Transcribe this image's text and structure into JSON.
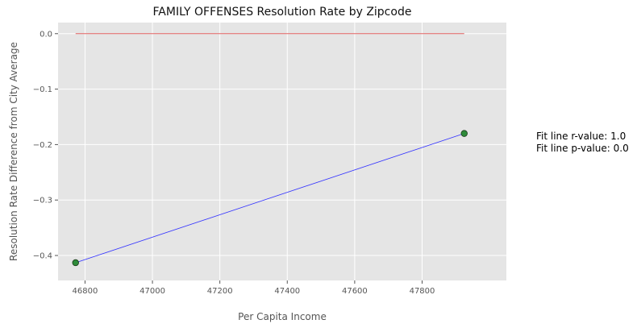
{
  "chart_data": {
    "type": "scatter",
    "title": "FAMILY OFFENSES Resolution Rate by Zipcode",
    "xlabel": "Per Capita Income",
    "ylabel": "Resolution Rate Difference from City Average",
    "xlim": [
      46720,
      48050
    ],
    "ylim": [
      -0.445,
      0.02
    ],
    "x_ticks": [
      46800,
      47000,
      47200,
      47400,
      47600,
      47800
    ],
    "x_tick_labels": [
      "46800",
      "47000",
      "47200",
      "47400",
      "47600",
      "47800"
    ],
    "y_ticks": [
      0.0,
      -0.1,
      -0.2,
      -0.3,
      -0.4
    ],
    "y_tick_labels": [
      "0.0",
      "−0.1",
      "−0.2",
      "−0.3",
      "−0.4"
    ],
    "grid": true,
    "background_color": "#e5e5e5",
    "points": {
      "x": [
        46772,
        47925
      ],
      "y": [
        -0.413,
        -0.18
      ],
      "color": "#2e8b3a"
    },
    "fit_line": {
      "x": [
        46772,
        47925
      ],
      "y": [
        -0.413,
        -0.18
      ],
      "color": "#3333ff"
    },
    "reference_line": {
      "x": [
        46772,
        47925
      ],
      "y": [
        0.0,
        0.0
      ],
      "color": "#e06060"
    },
    "annotations": [
      "Fit line r-value: 1.0",
      "Fit line p-value: 0.0"
    ]
  }
}
